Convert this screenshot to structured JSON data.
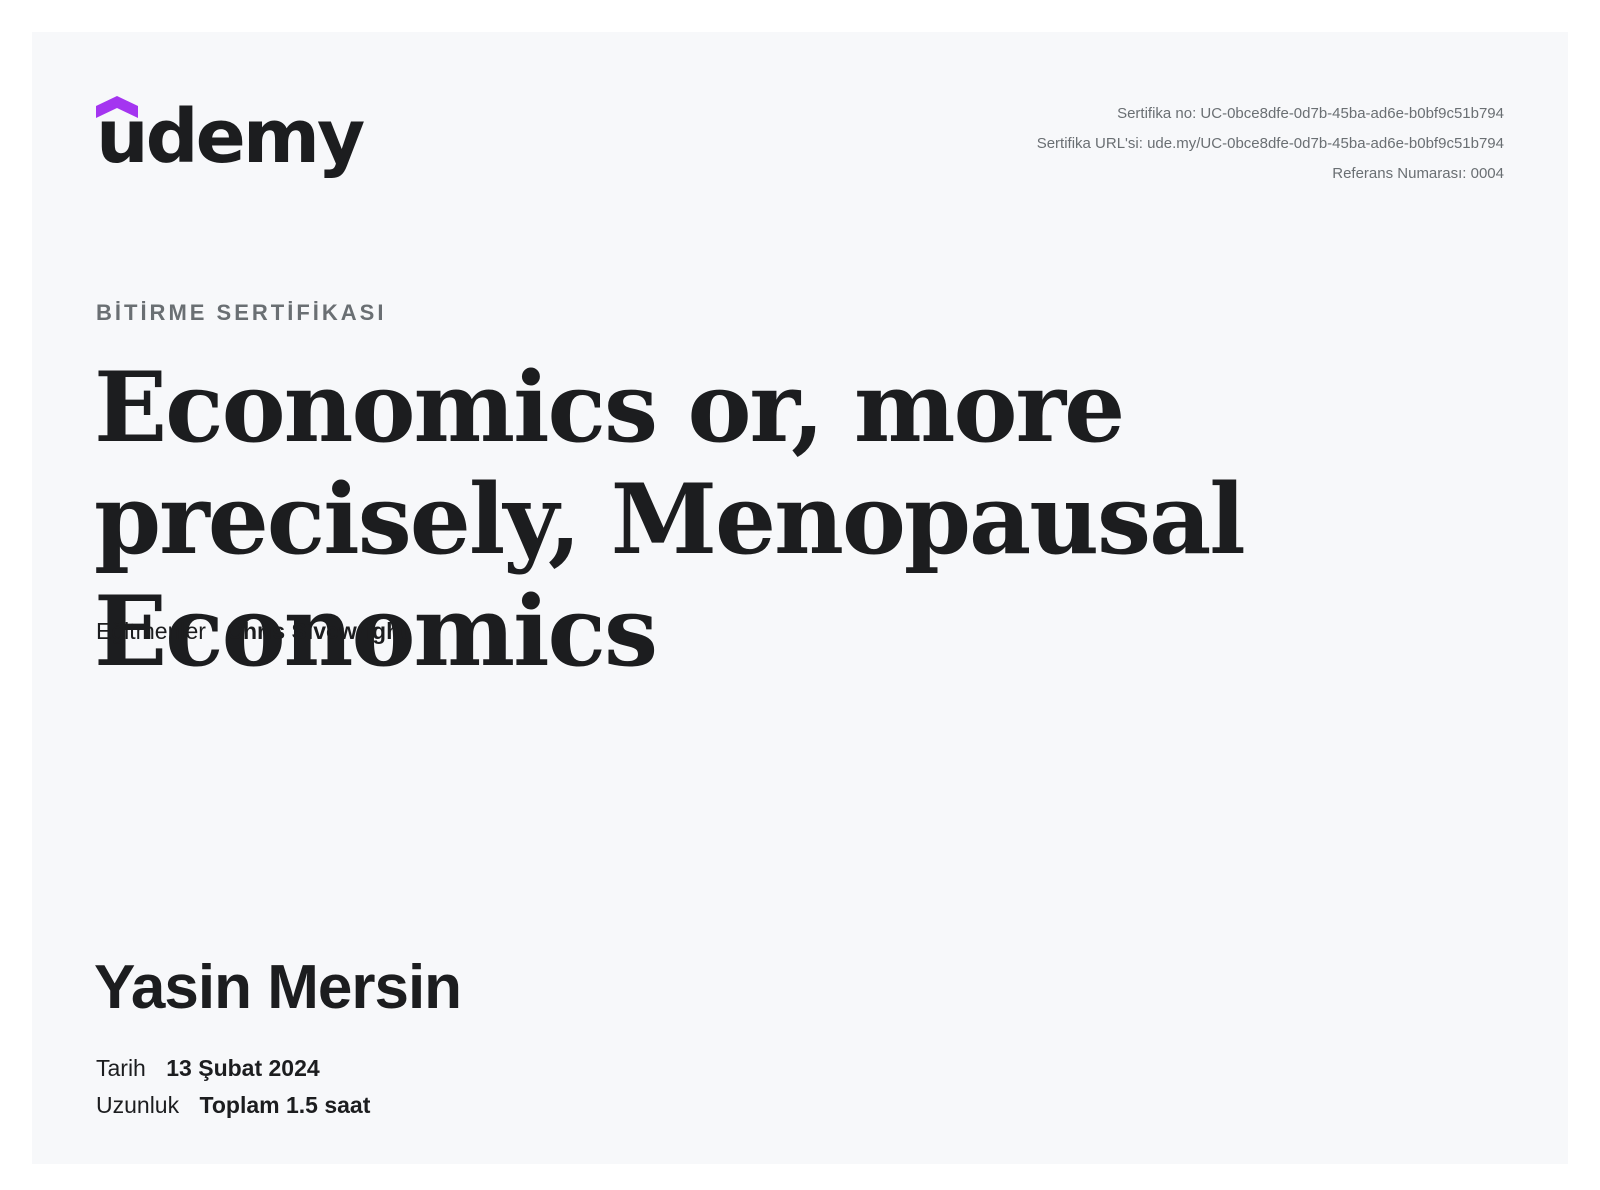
{
  "brand": {
    "name": "udemy",
    "accent_color": "#a435f0",
    "logo_icon": "udemy-hat-icon"
  },
  "certificate": {
    "number_line": "Sertifika no: UC-0bce8dfe-0d7b-45ba-ad6e-b0bf9c51b794",
    "url_line": "Sertifika URL'si: ude.my/UC-0bce8dfe-0d7b-45ba-ad6e-b0bf9c51b794",
    "reference_line": "Referans Numarası: 0004",
    "kicker": "BİTİRME SERTİFİKASI",
    "course_title": "Economics or, more precisely, Menopausal Economics",
    "instructors_label": "Eğitmenler",
    "instructors_value": "Chris Sivewright",
    "recipient_name": "Yasin Mersin",
    "date_label": "Tarih",
    "date_value": "13 Şubat 2024",
    "length_label": "Uzunluk",
    "length_value": "Toplam 1.5 saat"
  }
}
